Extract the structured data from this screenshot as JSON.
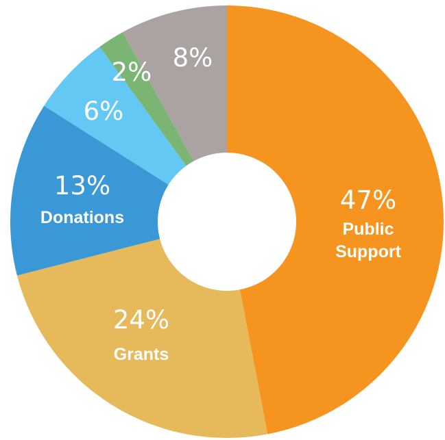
{
  "chart_data": {
    "type": "pie",
    "style": "donut",
    "slices": [
      {
        "value": 47,
        "pct_label": "47%",
        "lines": [
          "Public",
          "Support"
        ],
        "color": "#f59520"
      },
      {
        "value": 24,
        "pct_label": "24%",
        "lines": [
          "Grants"
        ],
        "color": "#e6b95b"
      },
      {
        "value": 13,
        "pct_label": "13%",
        "lines": [
          "Donations"
        ],
        "color": "#3a98d6"
      },
      {
        "value": 6,
        "pct_label": "6%",
        "lines": [],
        "color": "#63c8f3"
      },
      {
        "value": 2,
        "pct_label": "2%",
        "lines": [],
        "color": "#7bb574"
      },
      {
        "value": 8,
        "pct_label": "8%",
        "lines": [],
        "color": "#aba3a1"
      }
    ]
  }
}
